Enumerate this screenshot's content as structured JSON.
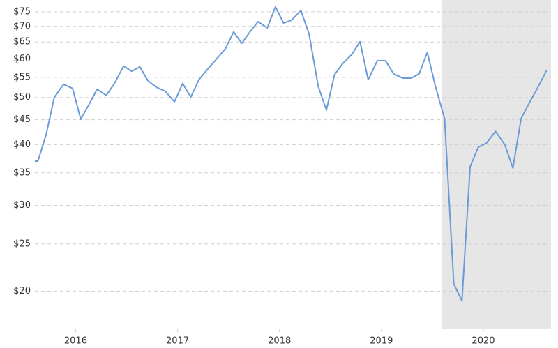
{
  "chart_data": {
    "type": "line",
    "log_y": true,
    "grid": true,
    "shaded_region": [
      2019.59,
      2020.664
    ],
    "shaded_color": "#e6e6e6",
    "xlim": [
      2015.6,
      2020.664
    ],
    "xticks": [
      2016,
      2017,
      2018,
      2019,
      2020
    ],
    "ylim": [
      16.7,
      79.3
    ],
    "yticks": [
      {
        "value": 20,
        "label": "$20"
      },
      {
        "value": 25,
        "label": "$25"
      },
      {
        "value": 30,
        "label": "$30"
      },
      {
        "value": 35,
        "label": "$35"
      },
      {
        "value": 40,
        "label": "$40"
      },
      {
        "value": 45,
        "label": "$45"
      },
      {
        "value": 50,
        "label": "$50"
      },
      {
        "value": 55,
        "label": "$55"
      },
      {
        "value": 60,
        "label": "$60"
      },
      {
        "value": 65,
        "label": "$65"
      },
      {
        "value": 70,
        "label": "$70"
      },
      {
        "value": 75,
        "label": "$75"
      }
    ],
    "x": [
      2015.6,
      2015.63,
      2015.71,
      2015.79,
      2015.88,
      2015.97,
      2016.05,
      2016.13,
      2016.21,
      2016.3,
      2016.38,
      2016.47,
      2016.55,
      2016.63,
      2016.71,
      2016.79,
      2016.88,
      2016.97,
      2017.05,
      2017.13,
      2017.21,
      2017.29,
      2017.38,
      2017.47,
      2017.55,
      2017.63,
      2017.71,
      2017.79,
      2017.88,
      2017.96,
      2018.04,
      2018.12,
      2018.21,
      2018.29,
      2018.38,
      2018.46,
      2018.54,
      2018.62,
      2018.71,
      2018.79,
      2018.87,
      2018.96,
      2019.04,
      2019.12,
      2019.21,
      2019.29,
      2019.37,
      2019.45,
      2019.53,
      2019.62,
      2019.71,
      2019.79,
      2019.87,
      2019.95,
      2020.03,
      2020.12,
      2020.21,
      2020.29,
      2020.37,
      2020.45,
      2020.53,
      2020.62
    ],
    "series": [
      {
        "color": "#6b9bd6",
        "values": [
          37.0,
          37.0,
          41.9,
          50.0,
          53.2,
          52.2,
          45.1,
          48.3,
          52.0,
          50.5,
          53.4,
          58.0,
          56.6,
          57.8,
          54.1,
          52.5,
          51.5,
          49.0,
          53.4,
          50.1,
          54.4,
          57.0,
          59.9,
          63.0,
          68.2,
          64.6,
          68.2,
          71.6,
          69.5,
          76.8,
          71.1,
          72.1,
          75.5,
          67.5,
          52.7,
          47.1,
          55.7,
          58.7,
          61.3,
          65.1,
          54.4,
          59.5,
          59.5,
          55.9,
          54.8,
          54.8,
          55.9,
          61.9,
          52.7,
          45.2,
          20.7,
          19.1,
          36.0,
          39.5,
          40.3,
          42.6,
          40.0,
          35.8,
          45.2,
          48.7,
          52.2,
          56.8
        ]
      }
    ]
  }
}
